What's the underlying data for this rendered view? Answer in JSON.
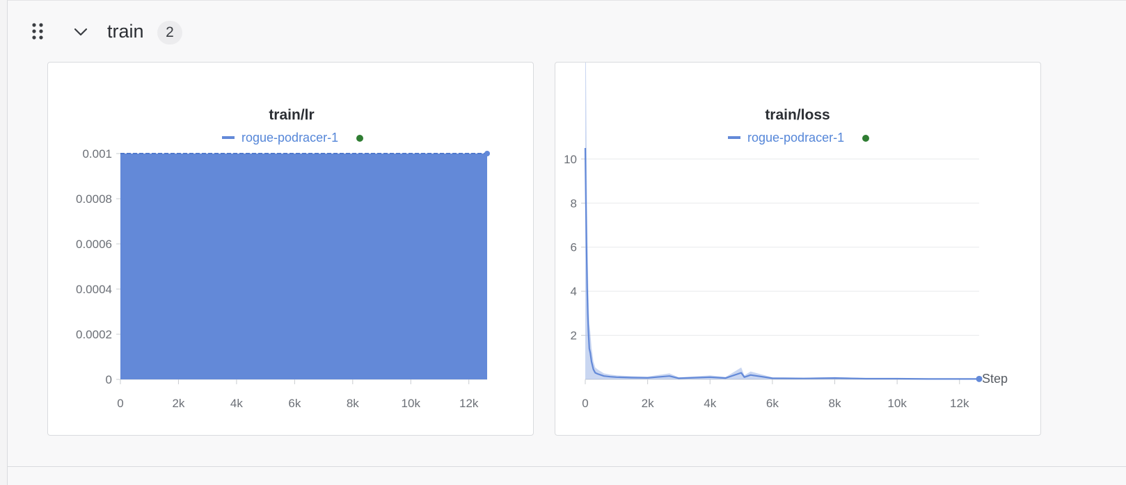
{
  "section": {
    "title": "train",
    "count": "2",
    "drag_icon": "drag-handle-icon",
    "toggle_icon": "chevron-down-icon"
  },
  "colors": {
    "series": "#6389d8",
    "run_status": "#2f7d32",
    "grid": "#e8e9eb"
  },
  "panels": [
    {
      "title": "train/lr",
      "legend": "rogue-podracer-1"
    },
    {
      "title": "train/loss",
      "legend": "rogue-podracer-1",
      "xlabel": "Step"
    }
  ],
  "chart_data": [
    {
      "type": "area",
      "title": "train/lr",
      "series": [
        {
          "name": "rogue-podracer-1",
          "x": [
            0,
            12630
          ],
          "y": [
            0.001,
            0.001
          ]
        }
      ],
      "xlim": [
        0,
        12630
      ],
      "ylim": [
        0,
        0.001
      ],
      "xticks": [
        0,
        2000,
        4000,
        6000,
        8000,
        10000,
        12000
      ],
      "xtick_labels": [
        "0",
        "2k",
        "4k",
        "6k",
        "8k",
        "10k",
        "12k"
      ],
      "yticks": [
        0,
        0.0002,
        0.0004,
        0.0006,
        0.0008,
        0.001
      ],
      "ytick_labels": [
        "0",
        "0.0002",
        "0.0004",
        "0.0006",
        "0.0008",
        "0.001"
      ],
      "grid": true,
      "legend": "top-center"
    },
    {
      "type": "line",
      "title": "train/loss",
      "xlabel": "Step",
      "series": [
        {
          "name": "rogue-podracer-1",
          "x": [
            0,
            20,
            40,
            60,
            80,
            100,
            130,
            160,
            200,
            260,
            320,
            400,
            500,
            600,
            800,
            1000,
            1500,
            2000,
            2700,
            3000,
            4000,
            4500,
            5000,
            5100,
            5300,
            6000,
            7000,
            8000,
            9000,
            10000,
            11000,
            12000,
            12630
          ],
          "y": [
            10.5,
            8.0,
            6.0,
            4.2,
            3.0,
            2.2,
            1.4,
            1.2,
            0.8,
            0.45,
            0.3,
            0.25,
            0.2,
            0.15,
            0.12,
            0.1,
            0.08,
            0.07,
            0.15,
            0.05,
            0.1,
            0.06,
            0.3,
            0.1,
            0.2,
            0.05,
            0.04,
            0.06,
            0.03,
            0.03,
            0.02,
            0.02,
            0.02
          ]
        }
      ],
      "xlim": [
        0,
        12630
      ],
      "ylim": [
        0,
        10.5
      ],
      "xticks": [
        0,
        2000,
        4000,
        6000,
        8000,
        10000,
        12000
      ],
      "xtick_labels": [
        "0",
        "2k",
        "4k",
        "6k",
        "8k",
        "10k",
        "12k"
      ],
      "yticks": [
        2,
        4,
        6,
        8,
        10
      ],
      "ytick_labels": [
        "2",
        "4",
        "6",
        "8",
        "10"
      ],
      "grid": true,
      "legend": "top-center"
    }
  ]
}
